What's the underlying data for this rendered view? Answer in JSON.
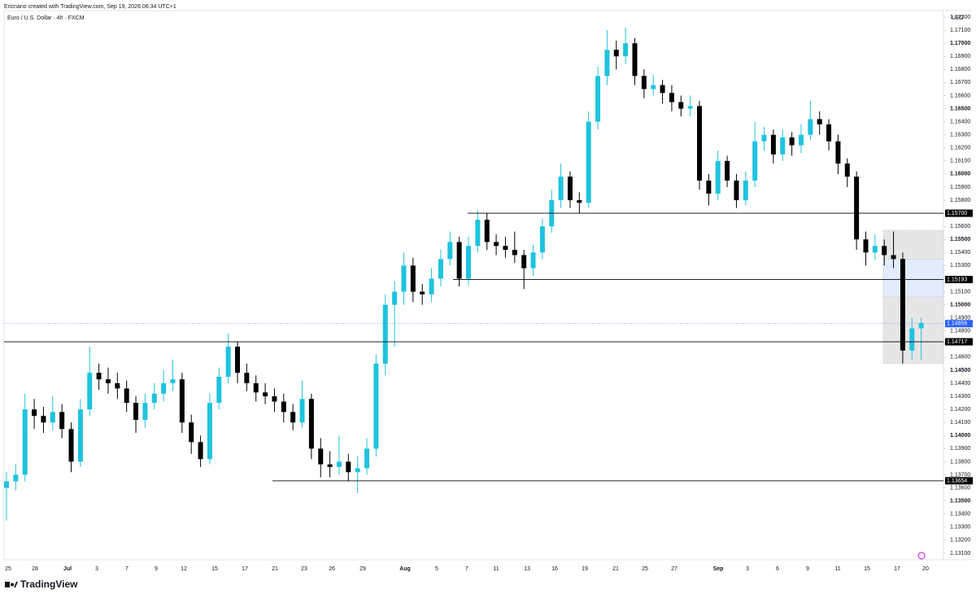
{
  "header": {
    "credit": "Ericnano created with TradingView.com, Sep 19, 2026 06:34 UTC+1",
    "logo": "TradingView"
  },
  "chart_data": {
    "type": "candlestick",
    "title": "Euro / U.S. Dollar · 4h · FXCM",
    "currency": "USD",
    "up_color": "#1fc3de",
    "down_color": "#000000",
    "ylim": [
      1.1305,
      1.1725
    ],
    "yticks": [
      {
        "value": 1.131,
        "label": "1.13100"
      },
      {
        "value": 1.132,
        "label": "1.13200"
      },
      {
        "value": 1.133,
        "label": "1.13300"
      },
      {
        "value": 1.134,
        "label": "1.13400"
      },
      {
        "value": 1.135,
        "label": "1.13500"
      },
      {
        "value": 1.136,
        "label": "1.13600"
      },
      {
        "value": 1.137,
        "label": "1.13700"
      },
      {
        "value": 1.138,
        "label": "1.13800"
      },
      {
        "value": 1.139,
        "label": "1.13900"
      },
      {
        "value": 1.14,
        "label": "1.14000"
      },
      {
        "value": 1.141,
        "label": "1.14100"
      },
      {
        "value": 1.142,
        "label": "1.14200"
      },
      {
        "value": 1.143,
        "label": "1.14300"
      },
      {
        "value": 1.144,
        "label": "1.14400"
      },
      {
        "value": 1.145,
        "label": "1.14500"
      },
      {
        "value": 1.146,
        "label": "1.14600"
      },
      {
        "value": 1.147,
        "label": "1.14700"
      },
      {
        "value": 1.148,
        "label": "1.14800"
      },
      {
        "value": 1.149,
        "label": "1.14900"
      },
      {
        "value": 1.15,
        "label": "1.15000"
      },
      {
        "value": 1.151,
        "label": "1.15100"
      },
      {
        "value": 1.152,
        "label": "1.15200"
      },
      {
        "value": 1.153,
        "label": "1.15300"
      },
      {
        "value": 1.154,
        "label": "1.15400"
      },
      {
        "value": 1.155,
        "label": "1.15500"
      },
      {
        "value": 1.156,
        "label": "1.15600"
      },
      {
        "value": 1.157,
        "label": "1.15700"
      },
      {
        "value": 1.158,
        "label": "1.15800"
      },
      {
        "value": 1.159,
        "label": "1.15900"
      },
      {
        "value": 1.16,
        "label": "1.16000"
      },
      {
        "value": 1.161,
        "label": "1.16100"
      },
      {
        "value": 1.162,
        "label": "1.16200"
      },
      {
        "value": 1.163,
        "label": "1.16300"
      },
      {
        "value": 1.164,
        "label": "1.16400"
      },
      {
        "value": 1.165,
        "label": "1.16500"
      },
      {
        "value": 1.166,
        "label": "1.16600"
      },
      {
        "value": 1.167,
        "label": "1.16700"
      },
      {
        "value": 1.168,
        "label": "1.16800"
      },
      {
        "value": 1.169,
        "label": "1.16900"
      },
      {
        "value": 1.17,
        "label": "1.17000"
      },
      {
        "value": 1.171,
        "label": "1.17100"
      },
      {
        "value": 1.172,
        "label": "1.17200"
      }
    ],
    "categories": [
      "25",
      "28",
      "Jul",
      "3",
      "7",
      "9",
      "12",
      "15",
      "17",
      "21",
      "23",
      "26",
      "29",
      "Aug",
      "5",
      "7",
      "11",
      "13",
      "16",
      "19",
      "21",
      "25",
      "27",
      "Sep",
      "3",
      "6",
      "9",
      "11",
      "15",
      "17",
      "20"
    ],
    "levels": [
      {
        "value": 1.157,
        "label": "1.15700"
      },
      {
        "value": 1.15193,
        "label": "1.15193"
      },
      {
        "value": 1.14717,
        "label": "1.14717"
      },
      {
        "value": 1.13654,
        "label": "1.13654"
      }
    ],
    "last_price": {
      "value": 1.14856,
      "label": "1.14856",
      "color": "#2962ff"
    },
    "zone": {
      "top": 1.1557,
      "bottom": 1.1455,
      "inner_top": 1.1535,
      "inner_bottom": 1.1506
    },
    "candles": [
      [
        1.136,
        1.1372,
        1.1335,
        1.1365
      ],
      [
        1.1365,
        1.1378,
        1.1358,
        1.137
      ],
      [
        1.137,
        1.1432,
        1.1365,
        1.142
      ],
      [
        1.142,
        1.1428,
        1.1405,
        1.1415
      ],
      [
        1.1415,
        1.1422,
        1.1402,
        1.141
      ],
      [
        1.141,
        1.143,
        1.1404,
        1.1418
      ],
      [
        1.1418,
        1.1424,
        1.1398,
        1.1405
      ],
      [
        1.1405,
        1.141,
        1.1372,
        1.138
      ],
      [
        1.138,
        1.1428,
        1.1376,
        1.142
      ],
      [
        1.142,
        1.1468,
        1.1415,
        1.1448
      ],
      [
        1.1448,
        1.1455,
        1.1435,
        1.1443
      ],
      [
        1.1443,
        1.1452,
        1.1432,
        1.144
      ],
      [
        1.144,
        1.1448,
        1.1428,
        1.1436
      ],
      [
        1.1436,
        1.1442,
        1.1418,
        1.1425
      ],
      [
        1.1425,
        1.143,
        1.1402,
        1.1412
      ],
      [
        1.1412,
        1.1432,
        1.1406,
        1.1425
      ],
      [
        1.1425,
        1.144,
        1.142,
        1.1432
      ],
      [
        1.1432,
        1.145,
        1.1426,
        1.144
      ],
      [
        1.144,
        1.1458,
        1.1434,
        1.1443
      ],
      [
        1.1443,
        1.1448,
        1.1402,
        1.141
      ],
      [
        1.141,
        1.1416,
        1.1386,
        1.1395
      ],
      [
        1.1395,
        1.14,
        1.1376,
        1.1382
      ],
      [
        1.1382,
        1.1432,
        1.1378,
        1.1425
      ],
      [
        1.1425,
        1.1452,
        1.142,
        1.1445
      ],
      [
        1.1445,
        1.1478,
        1.144,
        1.1468
      ],
      [
        1.1468,
        1.1472,
        1.144,
        1.1448
      ],
      [
        1.1448,
        1.1455,
        1.1434,
        1.144
      ],
      [
        1.144,
        1.1446,
        1.1426,
        1.1433
      ],
      [
        1.1433,
        1.144,
        1.1424,
        1.143
      ],
      [
        1.143,
        1.1436,
        1.1418,
        1.1426
      ],
      [
        1.1426,
        1.1432,
        1.141,
        1.1418
      ],
      [
        1.1418,
        1.1424,
        1.1404,
        1.141
      ],
      [
        1.141,
        1.1442,
        1.1406,
        1.1428
      ],
      [
        1.1428,
        1.1432,
        1.1382,
        1.139
      ],
      [
        1.139,
        1.1398,
        1.1368,
        1.1378
      ],
      [
        1.1378,
        1.1388,
        1.1368,
        1.1376
      ],
      [
        1.1376,
        1.14,
        1.137,
        1.138
      ],
      [
        1.138,
        1.1386,
        1.1365,
        1.1372
      ],
      [
        1.1372,
        1.1384,
        1.1356,
        1.1375
      ],
      [
        1.1375,
        1.1398,
        1.137,
        1.139
      ],
      [
        1.139,
        1.1462,
        1.1384,
        1.1455
      ],
      [
        1.1455,
        1.1508,
        1.1446,
        1.15
      ],
      [
        1.15,
        1.1518,
        1.1468,
        1.151
      ],
      [
        1.151,
        1.154,
        1.15,
        1.153
      ],
      [
        1.153,
        1.1536,
        1.1502,
        1.151
      ],
      [
        1.151,
        1.1516,
        1.15,
        1.1508
      ],
      [
        1.1508,
        1.1528,
        1.1502,
        1.152
      ],
      [
        1.152,
        1.1542,
        1.1514,
        1.1535
      ],
      [
        1.1535,
        1.1556,
        1.153,
        1.1548
      ],
      [
        1.1548,
        1.1552,
        1.1514,
        1.152
      ],
      [
        1.152,
        1.1552,
        1.1515,
        1.1545
      ],
      [
        1.1545,
        1.1572,
        1.154,
        1.1565
      ],
      [
        1.1565,
        1.157,
        1.1542,
        1.1548
      ],
      [
        1.1548,
        1.1554,
        1.1538,
        1.1545
      ],
      [
        1.1545,
        1.1552,
        1.1536,
        1.1542
      ],
      [
        1.1542,
        1.1556,
        1.1532,
        1.1538
      ],
      [
        1.1538,
        1.1542,
        1.1512,
        1.1528
      ],
      [
        1.1528,
        1.1546,
        1.1522,
        1.154
      ],
      [
        1.154,
        1.1566,
        1.1535,
        1.156
      ],
      [
        1.156,
        1.1588,
        1.1555,
        1.158
      ],
      [
        1.158,
        1.1608,
        1.1574,
        1.1598
      ],
      [
        1.1598,
        1.1602,
        1.1574,
        1.158
      ],
      [
        1.158,
        1.1586,
        1.157,
        1.1578
      ],
      [
        1.1578,
        1.1648,
        1.1574,
        1.164
      ],
      [
        1.164,
        1.1682,
        1.1634,
        1.1675
      ],
      [
        1.1675,
        1.171,
        1.1668,
        1.1695
      ],
      [
        1.1695,
        1.1702,
        1.168,
        1.169
      ],
      [
        1.169,
        1.1712,
        1.1684,
        1.17
      ],
      [
        1.17,
        1.1704,
        1.1668,
        1.1675
      ],
      [
        1.1675,
        1.168,
        1.1658,
        1.1665
      ],
      [
        1.1665,
        1.1676,
        1.166,
        1.1668
      ],
      [
        1.1668,
        1.1672,
        1.1654,
        1.1662
      ],
      [
        1.1662,
        1.1668,
        1.1648,
        1.1655
      ],
      [
        1.1655,
        1.166,
        1.1644,
        1.165
      ],
      [
        1.165,
        1.166,
        1.1644,
        1.1652
      ],
      [
        1.1652,
        1.1656,
        1.1588,
        1.1595
      ],
      [
        1.1595,
        1.16,
        1.1576,
        1.1585
      ],
      [
        1.1585,
        1.1618,
        1.158,
        1.161
      ],
      [
        1.161,
        1.1614,
        1.159,
        1.1595
      ],
      [
        1.1595,
        1.16,
        1.1574,
        1.158
      ],
      [
        1.158,
        1.1602,
        1.1576,
        1.1595
      ],
      [
        1.1595,
        1.164,
        1.159,
        1.1625
      ],
      [
        1.1625,
        1.1636,
        1.1618,
        1.163
      ],
      [
        1.163,
        1.1634,
        1.1608,
        1.1615
      ],
      [
        1.1615,
        1.1634,
        1.161,
        1.1628
      ],
      [
        1.1628,
        1.1632,
        1.1614,
        1.1622
      ],
      [
        1.1622,
        1.1638,
        1.1616,
        1.163
      ],
      [
        1.163,
        1.1656,
        1.1626,
        1.1642
      ],
      [
        1.1642,
        1.1648,
        1.163,
        1.1638
      ],
      [
        1.1638,
        1.1642,
        1.1618,
        1.1625
      ],
      [
        1.1625,
        1.163,
        1.16,
        1.1608
      ],
      [
        1.1608,
        1.1612,
        1.159,
        1.1598
      ],
      [
        1.1598,
        1.1602,
        1.1542,
        1.155
      ],
      [
        1.155,
        1.1556,
        1.153,
        1.154
      ],
      [
        1.154,
        1.1554,
        1.1534,
        1.1545
      ],
      [
        1.1545,
        1.155,
        1.153,
        1.1538
      ],
      [
        1.1538,
        1.1556,
        1.1528,
        1.1535
      ],
      [
        1.1535,
        1.154,
        1.1455,
        1.1465
      ],
      [
        1.1465,
        1.149,
        1.1458,
        1.1482
      ],
      [
        1.1482,
        1.149,
        1.1458,
        1.1486
      ]
    ]
  }
}
